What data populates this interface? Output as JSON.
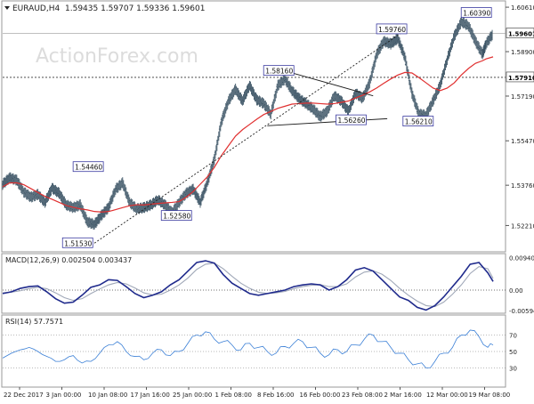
{
  "colors": {
    "price": "#3d5566",
    "ma": "#e03030",
    "macd": "#1f2a8c",
    "signal": "#a0a8b8",
    "rsi": "#3a7fd6",
    "trendline": "#1e1e1e",
    "grid": "#c8c8c8",
    "label_bg": "#ffffff"
  },
  "header": {
    "symbol": "EURAUD,H4",
    "ohlc": "1.59435 1.59707 1.59336 1.59601",
    "watermark": "ActionForex.com"
  },
  "chart_data": [
    {
      "type": "line",
      "name": "price-panel",
      "y_ticks": [
        "1.60610",
        "1.58900",
        "1.57190",
        "1.55470",
        "1.53760",
        "1.52210"
      ],
      "last_price_label": "1.59601",
      "level_label": "1.57910",
      "annotations": [
        "1.60390",
        "1.59760",
        "1.58160",
        "1.56260",
        "1.56210",
        "1.54460",
        "1.52580",
        "1.51530"
      ],
      "ylim": [
        1.513,
        1.6075
      ],
      "x": [
        0,
        8,
        16,
        24,
        32,
        40,
        48,
        56,
        64,
        72,
        80,
        88,
        96,
        104,
        112,
        120,
        128,
        136,
        144,
        152,
        160,
        168,
        176,
        184,
        192,
        200,
        208,
        216,
        224,
        232,
        240,
        248,
        256,
        264,
        272,
        280,
        288,
        296,
        304,
        312,
        320,
        328,
        336,
        344,
        352,
        360,
        368,
        376,
        384,
        392,
        400,
        408,
        416,
        424,
        432,
        440,
        448,
        456,
        464,
        472,
        480,
        488,
        496,
        504,
        512,
        520,
        528,
        536,
        544,
        548,
        556
      ],
      "close": [
        1.538,
        1.5405,
        1.5395,
        1.535,
        1.533,
        1.534,
        1.531,
        1.5365,
        1.5345,
        1.53,
        1.529,
        1.53,
        1.5235,
        1.5225,
        1.526,
        1.529,
        1.536,
        1.5385,
        1.531,
        1.5285,
        1.529,
        1.53,
        1.532,
        1.53,
        1.527,
        1.531,
        1.5345,
        1.536,
        1.531,
        1.5385,
        1.5475,
        1.562,
        1.57,
        1.5745,
        1.57,
        1.576,
        1.5705,
        1.569,
        1.565,
        1.576,
        1.5785,
        1.574,
        1.571,
        1.569,
        1.567,
        1.564,
        1.566,
        1.572,
        1.57,
        1.566,
        1.573,
        1.571,
        1.577,
        1.588,
        1.593,
        1.592,
        1.594,
        1.587,
        1.573,
        1.565,
        1.5645,
        1.57,
        1.576,
        1.586,
        1.595,
        1.6005,
        1.599,
        1.593,
        1.588,
        1.592,
        1.596
      ],
      "ma": [
        1.537,
        1.5385,
        1.5385,
        1.5378,
        1.5363,
        1.5348,
        1.5333,
        1.5322,
        1.531,
        1.5298,
        1.5291,
        1.5285,
        1.5281,
        1.5275,
        1.5273,
        1.5275,
        1.5282,
        1.529,
        1.5297,
        1.5301,
        1.53,
        1.5303,
        1.5306,
        1.5308,
        1.531,
        1.5313,
        1.533,
        1.5352,
        1.538,
        1.5408,
        1.5445,
        1.549,
        1.5528,
        1.5565,
        1.559,
        1.561,
        1.563,
        1.5648,
        1.566,
        1.5672,
        1.568,
        1.5688,
        1.569,
        1.5692,
        1.5692,
        1.569,
        1.5688,
        1.569,
        1.5695,
        1.57,
        1.5712,
        1.5722,
        1.5735,
        1.575,
        1.5768,
        1.5785,
        1.58,
        1.581,
        1.5808,
        1.579,
        1.577,
        1.575,
        1.574,
        1.575,
        1.577,
        1.58,
        1.5825,
        1.5845,
        1.5855,
        1.5862,
        1.587
      ]
    },
    {
      "type": "line",
      "name": "MACD",
      "title": "MACD(12,26,9) 0.002504 0.003437",
      "y_ticks": [
        "0.009402",
        "0.00",
        "-0.00594"
      ],
      "ylim": [
        -0.0062,
        0.0098
      ],
      "x": [
        0,
        10,
        20,
        30,
        40,
        50,
        60,
        70,
        80,
        90,
        100,
        110,
        120,
        130,
        140,
        150,
        160,
        170,
        180,
        190,
        200,
        210,
        220,
        230,
        240,
        250,
        260,
        270,
        280,
        290,
        300,
        310,
        320,
        330,
        340,
        350,
        360,
        370,
        380,
        390,
        400,
        410,
        420,
        430,
        440,
        450,
        460,
        470,
        480,
        490,
        500,
        510,
        520,
        530,
        540,
        550,
        556
      ],
      "macd": [
        -0.001,
        -0.0005,
        0.0005,
        0.001,
        0.0012,
        -0.0005,
        -0.0025,
        -0.0038,
        -0.0035,
        -0.0015,
        0.0008,
        0.0015,
        0.003,
        0.0028,
        0.001,
        -0.001,
        -0.0022,
        -0.0015,
        -0.0005,
        0.0015,
        0.003,
        0.0055,
        0.008,
        0.0085,
        0.0078,
        0.0045,
        0.002,
        0.0005,
        -0.001,
        -0.0015,
        -0.001,
        -0.0005,
        0.0,
        0.001,
        0.0015,
        0.0018,
        0.0015,
        0.0,
        0.001,
        0.003,
        0.0058,
        0.0065,
        0.0055,
        0.003,
        0.0005,
        -0.002,
        -0.003,
        -0.005,
        -0.0058,
        -0.0045,
        -0.002,
        0.001,
        0.004,
        0.0075,
        0.008,
        0.005,
        0.0025
      ],
      "signal": [
        -0.0008,
        -0.0006,
        -0.0002,
        0.0004,
        0.0008,
        0.0004,
        -0.0008,
        -0.0022,
        -0.003,
        -0.0025,
        -0.001,
        0.0003,
        0.0015,
        0.0022,
        0.0018,
        0.0006,
        -0.0008,
        -0.0014,
        -0.0012,
        0.0,
        0.0015,
        0.0035,
        0.006,
        0.0075,
        0.0078,
        0.0062,
        0.004,
        0.002,
        0.0005,
        -0.0006,
        -0.001,
        -0.0008,
        -0.0004,
        0.0004,
        0.001,
        0.0014,
        0.0016,
        0.001,
        0.001,
        0.0018,
        0.0038,
        0.0052,
        0.0056,
        0.0046,
        0.0028,
        0.0005,
        -0.0015,
        -0.0032,
        -0.0045,
        -0.0048,
        -0.0035,
        -0.0012,
        0.0015,
        0.0048,
        0.0068,
        0.0062,
        0.0034
      ]
    },
    {
      "type": "line",
      "name": "RSI",
      "title": "RSI(14) 57.7571",
      "y_ticks": [
        "70",
        "50",
        "30"
      ],
      "ylim": [
        10,
        90
      ],
      "x": [
        0,
        10,
        20,
        30,
        40,
        50,
        60,
        70,
        80,
        90,
        100,
        110,
        120,
        130,
        140,
        150,
        160,
        170,
        180,
        190,
        200,
        210,
        220,
        230,
        240,
        250,
        260,
        270,
        280,
        290,
        300,
        310,
        320,
        330,
        340,
        350,
        360,
        370,
        380,
        390,
        400,
        410,
        420,
        430,
        440,
        450,
        460,
        470,
        480,
        490,
        500,
        510,
        520,
        530,
        540,
        550,
        556
      ],
      "rsi": [
        42,
        48,
        52,
        55,
        50,
        44,
        38,
        40,
        45,
        36,
        38,
        48,
        58,
        62,
        50,
        44,
        40,
        48,
        52,
        45,
        50,
        60,
        70,
        74,
        65,
        62,
        58,
        52,
        60,
        55,
        50,
        48,
        56,
        60,
        62,
        55,
        48,
        46,
        52,
        50,
        58,
        65,
        70,
        62,
        55,
        48,
        40,
        35,
        30,
        38,
        48,
        55,
        70,
        76,
        68,
        55,
        58
      ]
    }
  ],
  "x_axis": {
    "labels": [
      "22 Dec 2017",
      "3 Jan 00:00",
      "10 Jan 08:00",
      "17 Jan 16:00",
      "25 Jan 00:00",
      "1 Feb 08:00",
      "8 Feb 16:00",
      "16 Feb 00:00",
      "23 Feb 08:00",
      "2 Mar 16:00",
      "12 Mar 00:00",
      "19 Mar 08:00"
    ]
  }
}
